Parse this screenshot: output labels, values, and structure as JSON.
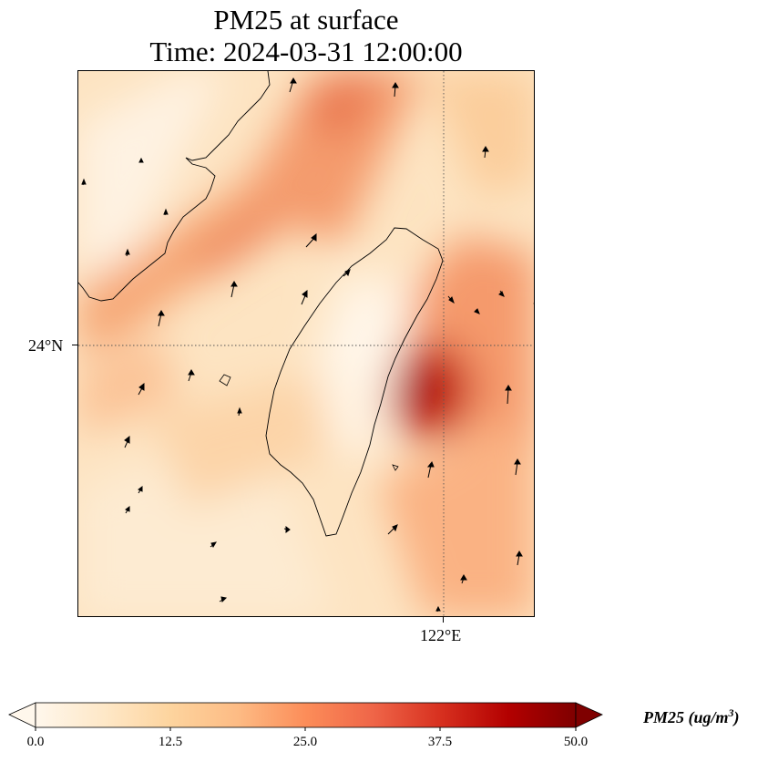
{
  "title_line1": "PM25 at surface",
  "title_line2": "Time: 2024-03-31 12:00:00",
  "map": {
    "lat_tick_label": "24°N",
    "lon_tick_label": "122°E",
    "land_outline_color": "#000000",
    "gridline_style": "dotted",
    "hotspots": [
      {
        "area": "north of Taiwan, over the Strait",
        "level": 32
      },
      {
        "area": "east coast of Taiwan near 24°N 122°E",
        "level": 48
      },
      {
        "area": "south-east of Taiwan",
        "level": 30
      },
      {
        "area": "central Taiwan interior",
        "level": 2
      }
    ]
  },
  "colorbar": {
    "label": "PM25 (ug/m3)",
    "label_base": "PM25 (ug/m",
    "label_sup": "3",
    "label_end": ")",
    "colormap": "OrRd",
    "min": 0.0,
    "max": 50.0,
    "extend": "both",
    "ticks": [
      "0.0",
      "12.5",
      "25.0",
      "37.5",
      "50.0"
    ],
    "colors": [
      "#fff7ec",
      "#fee8c8",
      "#fdd49e",
      "#fdbb84",
      "#fc8d59",
      "#ef6548",
      "#d7301f",
      "#b30000",
      "#7f0000"
    ]
  }
}
